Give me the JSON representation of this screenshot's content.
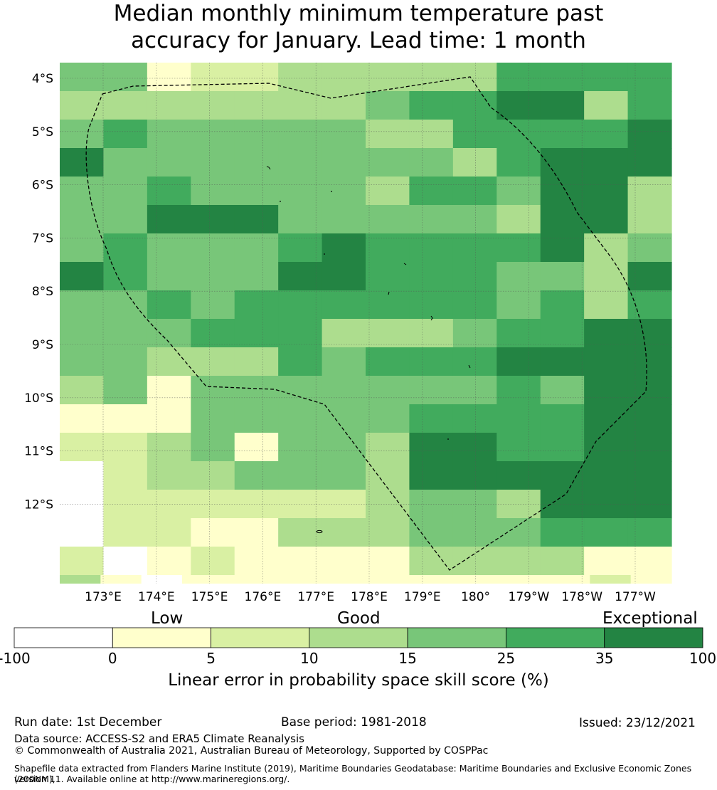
{
  "title_line1": "Median monthly minimum temperature past",
  "title_line2": "accuracy for January. Lead time: 1 month",
  "map": {
    "lat_labels": [
      "4°S",
      "5°S",
      "6°S",
      "7°S",
      "8°S",
      "9°S",
      "10°S",
      "11°S",
      "12°S"
    ],
    "lon_labels": [
      "173°E",
      "174°E",
      "175°E",
      "176°E",
      "177°E",
      "178°E",
      "179°E",
      "180°",
      "179°W",
      "178°W",
      "177°W"
    ],
    "grid_rows": [
      "44122333335555",
      "33333334556635",
      "45444443355556",
      "64444444435666",
      "44544443554663",
      "44666444443663",
      "45444565555634",
      "65444665554436",
      "44545555554535",
      "44455533345566",
      "44333545556666",
      "34144444445466",
      "11144444555566",
      "22341443665566",
      "02334443666666",
      "02222223443666",
      "02211333444555",
      "20121111333311"
    ],
    "bottom_strip": "310111111111121"
  },
  "colorbar": {
    "categories": [
      {
        "range": "-100 to 0",
        "color": "#ffffff"
      },
      {
        "range": "0 to 5",
        "color": "#ffffcc"
      },
      {
        "range": "5 to 10",
        "color": "#d9f0a3"
      },
      {
        "range": "10 to 15",
        "color": "#addd8e"
      },
      {
        "range": "15 to 25",
        "color": "#78c679"
      },
      {
        "range": "25 to 35",
        "color": "#41ab5d"
      },
      {
        "range": "35 to 100",
        "color": "#238443"
      }
    ],
    "ticks": [
      "-100",
      "0",
      "5",
      "10",
      "15",
      "25",
      "35",
      "100"
    ],
    "label_low": "Low",
    "label_good": "Good",
    "label_exceptional": "Exceptional",
    "title": "Linear error in probability space skill score (%)"
  },
  "footer": {
    "run_date": "Run date: 1st December",
    "base_period": "Base period: 1981-2018",
    "issued": "Issued: 23/12/2021",
    "data_source": "Data source: ACCESS-S2 and ERA5 Climate Reanalysis",
    "copyright": "© Commonwealth of Australia 2021, Australian Bureau of Meteorology, Supported by COSPPac",
    "shapefile_line1": "Shapefile data extracted from Flanders Marine Institute (2019), Maritime Boundaries Geodatabase: Maritime Boundaries and Exclusive Economic Zones (200NM),",
    "shapefile_line2": "version 11. Available online at http://www.marineregions.org/."
  }
}
